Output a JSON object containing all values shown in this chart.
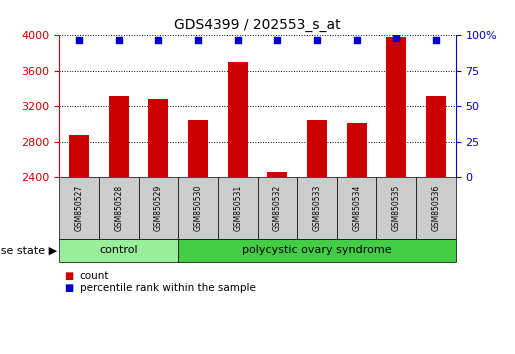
{
  "title": "GDS4399 / 202553_s_at",
  "samples": [
    "GSM850527",
    "GSM850528",
    "GSM850529",
    "GSM850530",
    "GSM850531",
    "GSM850532",
    "GSM850533",
    "GSM850534",
    "GSM850535",
    "GSM850536"
  ],
  "counts": [
    2870,
    3320,
    3280,
    3040,
    3700,
    2460,
    3040,
    3010,
    3980,
    3310
  ],
  "percentile_ranks": [
    97,
    97,
    97,
    97,
    97,
    97,
    97,
    97,
    98,
    97
  ],
  "ylim_left": [
    2400,
    4000
  ],
  "ylim_right": [
    0,
    100
  ],
  "yticks_left": [
    2400,
    2800,
    3200,
    3600,
    4000
  ],
  "yticks_right": [
    0,
    25,
    50,
    75,
    100
  ],
  "bar_color": "#cc0000",
  "dot_color": "#0000cc",
  "grid_color": "#000000",
  "bg_color": "#ffffff",
  "tick_area_color": "#cccccc",
  "control_color": "#99ee99",
  "pcos_color": "#44cc44",
  "control_n": 3,
  "pcos_n": 7,
  "control_label": "control",
  "pcos_label": "polycystic ovary syndrome",
  "disease_state_label": "disease state",
  "legend_count_label": "count",
  "legend_percentile_label": "percentile rank within the sample",
  "left_axis_color": "#cc0000",
  "right_axis_color": "#0000cc"
}
